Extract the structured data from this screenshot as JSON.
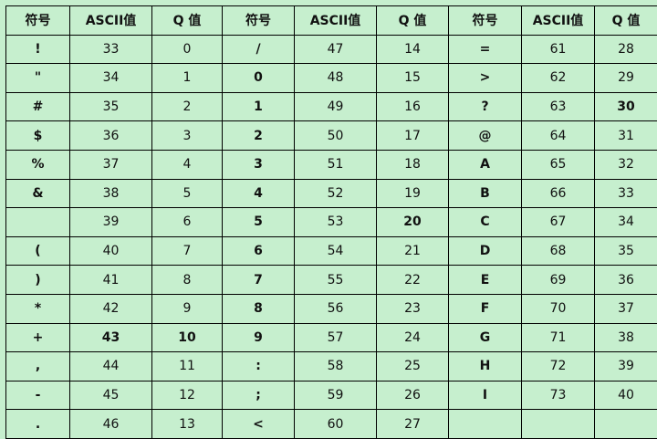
{
  "table": {
    "headers": [
      "符号",
      "ASCII值",
      "Q 值",
      "符号",
      "ASCII值",
      "Q 值",
      "符号",
      "ASCII值",
      "Q 值"
    ],
    "rows": [
      [
        {
          "t": "!",
          "b": true
        },
        {
          "t": "33"
        },
        {
          "t": "0"
        },
        {
          "t": "/",
          "b": true
        },
        {
          "t": "47"
        },
        {
          "t": "14"
        },
        {
          "t": "=",
          "b": true
        },
        {
          "t": "61"
        },
        {
          "t": "28"
        }
      ],
      [
        {
          "t": "\"",
          "b": true
        },
        {
          "t": "34"
        },
        {
          "t": "1"
        },
        {
          "t": "0",
          "b": true
        },
        {
          "t": "48"
        },
        {
          "t": "15"
        },
        {
          "t": ">",
          "b": true
        },
        {
          "t": "62"
        },
        {
          "t": "29"
        }
      ],
      [
        {
          "t": "#",
          "b": true
        },
        {
          "t": "35"
        },
        {
          "t": "2"
        },
        {
          "t": "1",
          "b": true
        },
        {
          "t": "49"
        },
        {
          "t": "16"
        },
        {
          "t": "?",
          "b": true
        },
        {
          "t": "63"
        },
        {
          "t": "30",
          "b": true
        }
      ],
      [
        {
          "t": "$",
          "b": true
        },
        {
          "t": "36"
        },
        {
          "t": "3"
        },
        {
          "t": "2",
          "b": true
        },
        {
          "t": "50"
        },
        {
          "t": "17"
        },
        {
          "t": "@",
          "b": true
        },
        {
          "t": "64"
        },
        {
          "t": "31"
        }
      ],
      [
        {
          "t": "%",
          "b": true
        },
        {
          "t": "37"
        },
        {
          "t": "4"
        },
        {
          "t": "3",
          "b": true
        },
        {
          "t": "51"
        },
        {
          "t": "18"
        },
        {
          "t": "A",
          "b": true
        },
        {
          "t": "65"
        },
        {
          "t": "32"
        }
      ],
      [
        {
          "t": "&",
          "b": true
        },
        {
          "t": "38"
        },
        {
          "t": "5"
        },
        {
          "t": "4",
          "b": true
        },
        {
          "t": "52"
        },
        {
          "t": "19"
        },
        {
          "t": "B",
          "b": true
        },
        {
          "t": "66"
        },
        {
          "t": "33"
        }
      ],
      [
        {
          "t": ""
        },
        {
          "t": "39"
        },
        {
          "t": "6"
        },
        {
          "t": "5",
          "b": true
        },
        {
          "t": "53"
        },
        {
          "t": "20",
          "b": true
        },
        {
          "t": "C",
          "b": true
        },
        {
          "t": "67"
        },
        {
          "t": "34"
        }
      ],
      [
        {
          "t": "(",
          "b": true
        },
        {
          "t": "40"
        },
        {
          "t": "7"
        },
        {
          "t": "6",
          "b": true
        },
        {
          "t": "54"
        },
        {
          "t": "21"
        },
        {
          "t": "D",
          "b": true
        },
        {
          "t": "68"
        },
        {
          "t": "35"
        }
      ],
      [
        {
          "t": ")",
          "b": true
        },
        {
          "t": "41"
        },
        {
          "t": "8"
        },
        {
          "t": "7",
          "b": true
        },
        {
          "t": "55"
        },
        {
          "t": "22"
        },
        {
          "t": "E",
          "b": true
        },
        {
          "t": "69"
        },
        {
          "t": "36"
        }
      ],
      [
        {
          "t": "*",
          "b": true
        },
        {
          "t": "42"
        },
        {
          "t": "9"
        },
        {
          "t": "8",
          "b": true
        },
        {
          "t": "56"
        },
        {
          "t": "23"
        },
        {
          "t": "F",
          "b": true
        },
        {
          "t": "70"
        },
        {
          "t": "37"
        }
      ],
      [
        {
          "t": "+",
          "b": true
        },
        {
          "t": "43",
          "b": true
        },
        {
          "t": "10",
          "b": true
        },
        {
          "t": "9",
          "b": true
        },
        {
          "t": "57"
        },
        {
          "t": "24"
        },
        {
          "t": "G",
          "b": true
        },
        {
          "t": "71"
        },
        {
          "t": "38"
        }
      ],
      [
        {
          "t": ",",
          "b": true
        },
        {
          "t": "44"
        },
        {
          "t": "11"
        },
        {
          "t": ":",
          "b": true
        },
        {
          "t": "58"
        },
        {
          "t": "25"
        },
        {
          "t": "H",
          "b": true
        },
        {
          "t": "72"
        },
        {
          "t": "39"
        }
      ],
      [
        {
          "t": "-",
          "b": true
        },
        {
          "t": "45"
        },
        {
          "t": "12"
        },
        {
          "t": ";",
          "b": true
        },
        {
          "t": "59"
        },
        {
          "t": "26"
        },
        {
          "t": "I",
          "b": true
        },
        {
          "t": "73"
        },
        {
          "t": "40"
        }
      ],
      [
        {
          "t": ".",
          "b": true
        },
        {
          "t": "46"
        },
        {
          "t": "13"
        },
        {
          "t": "<",
          "b": true
        },
        {
          "t": "60"
        },
        {
          "t": "27"
        },
        {
          "t": ""
        },
        {
          "t": ""
        },
        {
          "t": ""
        }
      ]
    ]
  },
  "colors": {
    "background": "#c6efce",
    "grid": "#000000",
    "text": "#111111"
  }
}
